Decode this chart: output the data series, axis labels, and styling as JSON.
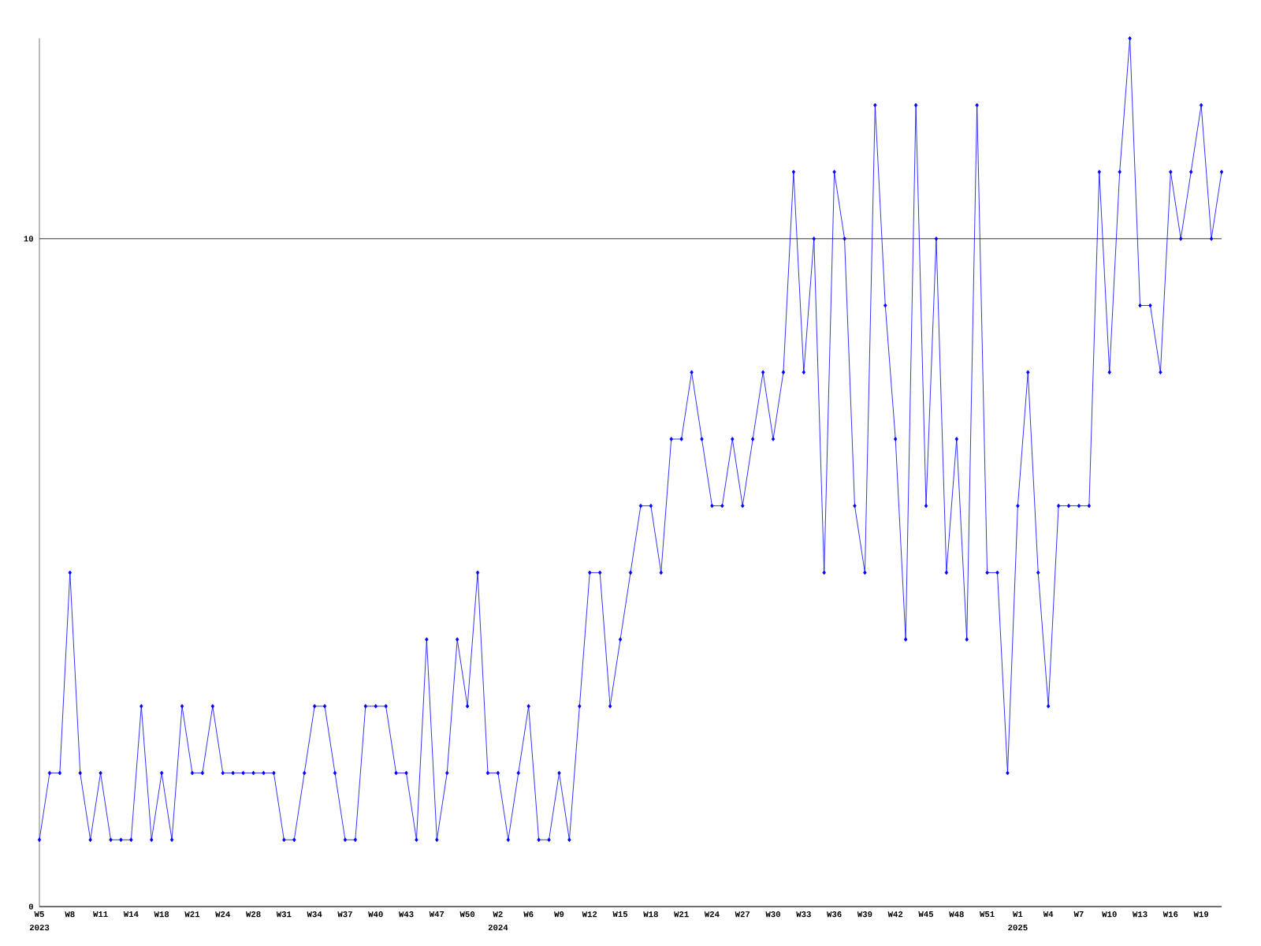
{
  "chart_data": {
    "type": "line",
    "categories": [
      "W5",
      null,
      null,
      "W8",
      null,
      null,
      "W11",
      null,
      null,
      "W14",
      null,
      null,
      "W18",
      null,
      null,
      "W21",
      null,
      null,
      "W24",
      null,
      null,
      "W28",
      null,
      null,
      "W31",
      null,
      null,
      "W34",
      null,
      null,
      "W37",
      null,
      null,
      "W40",
      null,
      null,
      "W43",
      null,
      null,
      "W47",
      null,
      null,
      "W50",
      null,
      null,
      "W2",
      null,
      null,
      "W6",
      null,
      null,
      "W9",
      null,
      null,
      "W12",
      null,
      null,
      "W15",
      null,
      null,
      "W18",
      null,
      null,
      "W21",
      null,
      null,
      "W24",
      null,
      null,
      "W27",
      null,
      null,
      "W30",
      null,
      null,
      "W33",
      null,
      null,
      "W36",
      null,
      null,
      "W39",
      null,
      null,
      "W42",
      null,
      null,
      "W45",
      null,
      null,
      "W48",
      null,
      null,
      "W51",
      null,
      null,
      "W1",
      null,
      null,
      "W4",
      null,
      null,
      "W7",
      null,
      null,
      "W10",
      null,
      null,
      "W13",
      null,
      null,
      "W16",
      null,
      null,
      "W19",
      null,
      null
    ],
    "values": [
      1,
      2,
      2,
      5,
      2,
      1,
      2,
      1,
      1,
      1,
      3,
      1,
      2,
      1,
      3,
      2,
      2,
      3,
      2,
      2,
      2,
      2,
      2,
      2,
      1,
      1,
      2,
      3,
      3,
      2,
      1,
      1,
      3,
      3,
      3,
      2,
      2,
      1,
      4,
      1,
      2,
      4,
      3,
      5,
      2,
      2,
      1,
      2,
      3,
      1,
      1,
      2,
      1,
      3,
      5,
      5,
      3,
      4,
      5,
      6,
      6,
      5,
      7,
      7,
      8,
      7,
      6,
      6,
      7,
      6,
      7,
      8,
      7,
      8,
      11,
      8,
      10,
      5,
      11,
      10,
      6,
      5,
      12,
      9,
      7,
      4,
      12,
      6,
      10,
      5,
      7,
      4,
      12,
      5,
      5,
      2,
      6,
      8,
      5,
      3,
      6,
      6,
      6,
      6,
      11,
      8,
      11,
      13,
      9,
      9,
      8,
      11,
      10,
      11,
      12,
      10,
      11
    ],
    "color": "#0000ff",
    "marker": "diamond",
    "grid": "y",
    "ylim": [
      0,
      13
    ],
    "yticks": [
      0,
      10
    ],
    "annotations": [
      "2023",
      "2024",
      "2025"
    ]
  }
}
